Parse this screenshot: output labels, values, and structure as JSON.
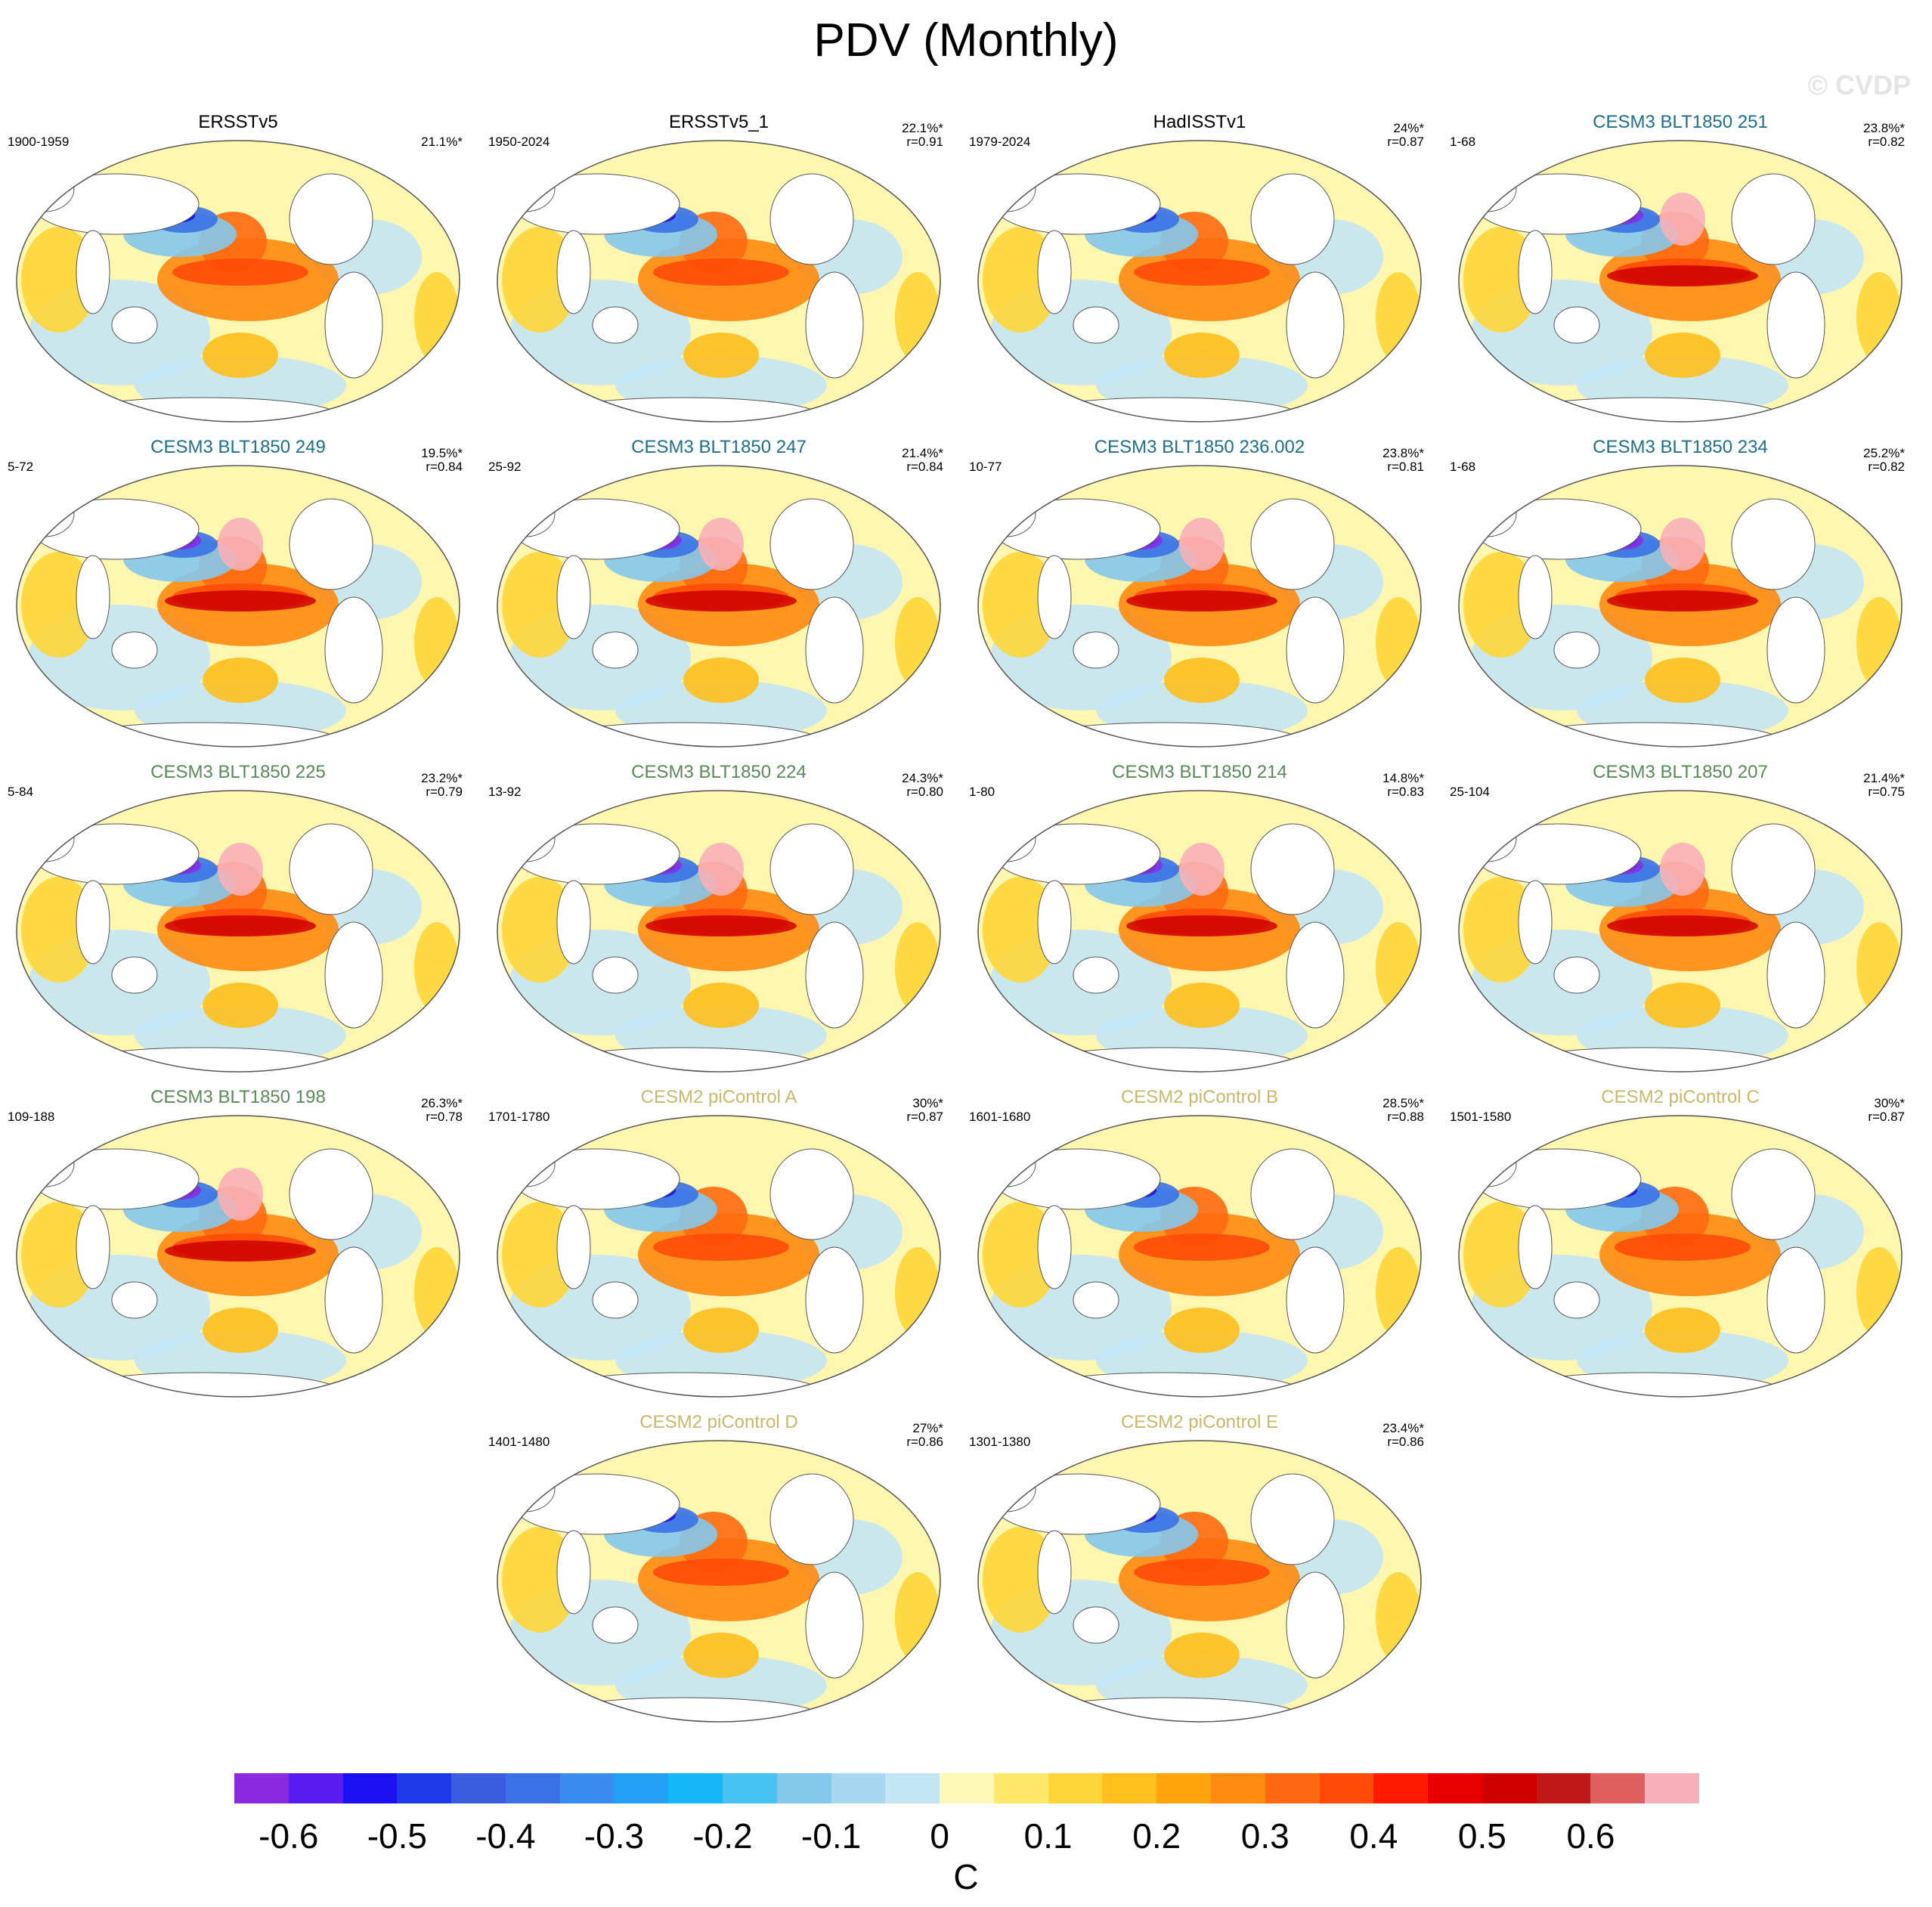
{
  "title": "PDV (Monthly)",
  "watermark": "© CVDP",
  "colors": {
    "obs_title": "#000000",
    "blt_blue_title": "#1f6f8b",
    "blt_green_title": "#5a8a5a",
    "picontrol_title": "#c8b86a"
  },
  "panels": [
    {
      "title": "ERSSTv5",
      "group": "obs",
      "period": "1900-1959",
      "pct": "21.1%*",
      "r": ""
    },
    {
      "title": "ERSSTv5_1",
      "group": "obs",
      "period": "1950-2024",
      "pct": "22.1%*",
      "r": "r=0.91"
    },
    {
      "title": "HadISSTv1",
      "group": "obs",
      "period": "1979-2024",
      "pct": "24%*",
      "r": "r=0.87"
    },
    {
      "title": "CESM3 BLT1850 251",
      "group": "blt_blue",
      "period": "1-68",
      "pct": "23.8%*",
      "r": "r=0.82"
    },
    {
      "title": "CESM3 BLT1850 249",
      "group": "blt_blue",
      "period": "5-72",
      "pct": "19.5%*",
      "r": "r=0.84"
    },
    {
      "title": "CESM3 BLT1850 247",
      "group": "blt_blue",
      "period": "25-92",
      "pct": "21.4%*",
      "r": "r=0.84"
    },
    {
      "title": "CESM3 BLT1850 236.002",
      "group": "blt_blue",
      "period": "10-77",
      "pct": "23.8%*",
      "r": "r=0.81"
    },
    {
      "title": "CESM3 BLT1850 234",
      "group": "blt_blue",
      "period": "1-68",
      "pct": "25.2%*",
      "r": "r=0.82"
    },
    {
      "title": "CESM3 BLT1850 225",
      "group": "blt_green",
      "period": "5-84",
      "pct": "23.2%*",
      "r": "r=0.79"
    },
    {
      "title": "CESM3 BLT1850 224",
      "group": "blt_green",
      "period": "13-92",
      "pct": "24.3%*",
      "r": "r=0.80"
    },
    {
      "title": "CESM3 BLT1850 214",
      "group": "blt_green",
      "period": "1-80",
      "pct": "14.8%*",
      "r": "r=0.83"
    },
    {
      "title": "CESM3 BLT1850 207",
      "group": "blt_green",
      "period": "25-104",
      "pct": "21.4%*",
      "r": "r=0.75"
    },
    {
      "title": "CESM3 BLT1850 198",
      "group": "blt_green",
      "period": "109-188",
      "pct": "26.3%*",
      "r": "r=0.78"
    },
    {
      "title": "CESM2 piControl A",
      "group": "picontrol",
      "period": "1701-1780",
      "pct": "30%*",
      "r": "r=0.87"
    },
    {
      "title": "CESM2 piControl B",
      "group": "picontrol",
      "period": "1601-1680",
      "pct": "28.5%*",
      "r": "r=0.88"
    },
    {
      "title": "CESM2 piControl C",
      "group": "picontrol",
      "period": "1501-1580",
      "pct": "30%*",
      "r": "r=0.87"
    },
    {
      "title": "CESM2 piControl D",
      "group": "picontrol",
      "period": "1401-1480",
      "pct": "27%*",
      "r": "r=0.86"
    },
    {
      "title": "CESM2 piControl E",
      "group": "picontrol",
      "period": "1301-1380",
      "pct": "23.4%*",
      "r": "r=0.86"
    }
  ],
  "colorbar": {
    "unit": "C",
    "labels": [
      "-0.6",
      "-0.5",
      "-0.4",
      "-0.3",
      "-0.2",
      "-0.1",
      "0",
      "0.1",
      "0.2",
      "0.3",
      "0.4",
      "0.5",
      "0.6"
    ],
    "colors": [
      "#8a2be2",
      "#5a1cf0",
      "#1a10f0",
      "#1d3ae8",
      "#3a5ce0",
      "#3a72e6",
      "#3a8cf0",
      "#22a0f5",
      "#14b8f8",
      "#48c2f2",
      "#84c8ec",
      "#a8d8f0",
      "#c4e6f4",
      "#fff8b8",
      "#ffe868",
      "#ffd638",
      "#ffbf1c",
      "#ffa40c",
      "#ff8a10",
      "#ff6a10",
      "#ff4a08",
      "#ff1a00",
      "#e80000",
      "#d00000",
      "#c01818",
      "#e06060",
      "#f8b0b8"
    ]
  }
}
